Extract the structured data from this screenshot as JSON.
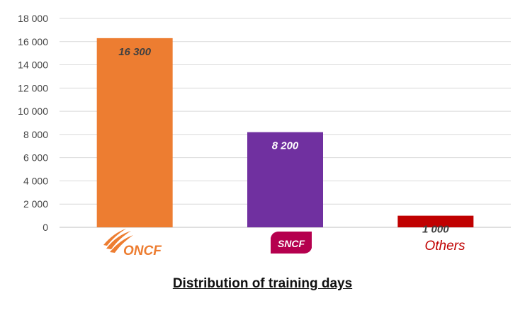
{
  "chart_data": {
    "type": "bar",
    "categories": [
      "ONCF",
      "SNCF",
      "Others"
    ],
    "values": [
      16300,
      8200,
      1000
    ],
    "data_labels": [
      "16 300",
      "8 200",
      "1 000"
    ],
    "bar_colors": [
      "#ed7d31",
      "#7030a0",
      "#c00000"
    ],
    "label_colors": [
      "#404040",
      "#ffffff",
      "#404040"
    ],
    "ylim": [
      0,
      18000
    ],
    "yticks": [
      0,
      2000,
      4000,
      6000,
      8000,
      10000,
      12000,
      14000,
      16000,
      18000
    ],
    "ytick_labels": [
      "0",
      "2 000",
      "4 000",
      "6 000",
      "8 000",
      "10 000",
      "12 000",
      "14 000",
      "16 000",
      "18 000"
    ],
    "grid": true,
    "title": "Distribution of training days",
    "xlabel": "",
    "ylabel": ""
  },
  "logos": {
    "oncf": {
      "text": "ONCF",
      "color": "#ed7d31"
    },
    "sncf": {
      "text": "SNCF",
      "color": "#b5004e"
    },
    "others": {
      "text": "Others",
      "color": "#c00000"
    }
  }
}
